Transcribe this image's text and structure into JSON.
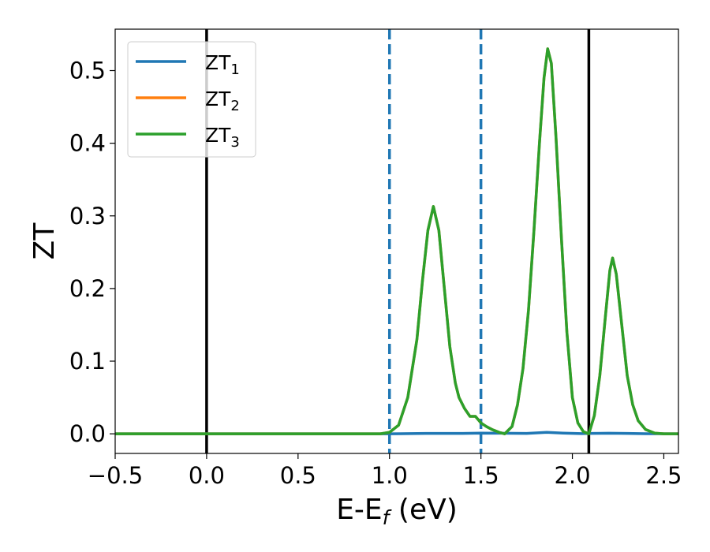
{
  "chart_data": {
    "type": "line",
    "xlabel": {
      "main": "E-E",
      "sub": "f",
      "rest": " (eV)"
    },
    "ylabel": "ZT",
    "xlim": [
      -0.5,
      2.58
    ],
    "ylim": [
      -0.027,
      0.557
    ],
    "xticks": [
      {
        "value": -0.5,
        "label": "−0.5"
      },
      {
        "value": 0.0,
        "label": "0.0"
      },
      {
        "value": 0.5,
        "label": "0.5"
      },
      {
        "value": 1.0,
        "label": "1.0"
      },
      {
        "value": 1.5,
        "label": "1.5"
      },
      {
        "value": 2.0,
        "label": "2.0"
      },
      {
        "value": 2.5,
        "label": "2.5"
      }
    ],
    "yticks": [
      {
        "value": 0.0,
        "label": "0.0"
      },
      {
        "value": 0.1,
        "label": "0.1"
      },
      {
        "value": 0.2,
        "label": "0.2"
      },
      {
        "value": 0.3,
        "label": "0.3"
      },
      {
        "value": 0.4,
        "label": "0.4"
      },
      {
        "value": 0.5,
        "label": "0.5"
      }
    ],
    "legend_position": "top-left",
    "grid": false,
    "vlines": [
      {
        "x": 0.0,
        "color": "#000000",
        "style": "solid"
      },
      {
        "x": 1.0,
        "color": "#1f77b4",
        "style": "dashed"
      },
      {
        "x": 1.5,
        "color": "#1f77b4",
        "style": "dashed"
      },
      {
        "x": 2.09,
        "color": "#000000",
        "style": "solid"
      }
    ],
    "series": [
      {
        "name": {
          "main": "ZT",
          "sub": "1"
        },
        "color": "#1f77b4",
        "x": [
          -0.5,
          0.0,
          0.5,
          1.0,
          1.2,
          1.4,
          1.5,
          1.6,
          1.75,
          1.86,
          1.95,
          2.05,
          2.1,
          2.2,
          2.3,
          2.4,
          2.58
        ],
        "y": [
          0,
          0,
          0,
          0,
          0.0005,
          0.0005,
          0.001,
          0.0008,
          0.0005,
          0.002,
          0.001,
          0.0003,
          0.0005,
          0.0008,
          0.0005,
          0.0002,
          0
        ]
      },
      {
        "name": {
          "main": "ZT",
          "sub": "2"
        },
        "color": "#ff7f0e",
        "x": [
          -0.5,
          0.0,
          0.5,
          0.95,
          1.0,
          1.05,
          1.1,
          1.15,
          1.18,
          1.21,
          1.24,
          1.27,
          1.3,
          1.33,
          1.36,
          1.38,
          1.41,
          1.44,
          1.47,
          1.5,
          1.53,
          1.56,
          1.6,
          1.63,
          1.67,
          1.7,
          1.73,
          1.76,
          1.79,
          1.82,
          1.845,
          1.865,
          1.885,
          1.91,
          1.94,
          1.97,
          2.0,
          2.03,
          2.06,
          2.09,
          2.12,
          2.15,
          2.18,
          2.205,
          2.22,
          2.24,
          2.27,
          2.3,
          2.33,
          2.36,
          2.4,
          2.45,
          2.5,
          2.58
        ],
        "y": [
          0,
          0,
          0,
          0,
          0.002,
          0.012,
          0.05,
          0.13,
          0.21,
          0.28,
          0.313,
          0.28,
          0.2,
          0.12,
          0.07,
          0.05,
          0.035,
          0.024,
          0.024,
          0.015,
          0.01,
          0.006,
          0.002,
          0.0,
          0.01,
          0.04,
          0.09,
          0.17,
          0.28,
          0.4,
          0.49,
          0.53,
          0.51,
          0.41,
          0.27,
          0.14,
          0.05,
          0.015,
          0.003,
          0.0,
          0.025,
          0.08,
          0.16,
          0.225,
          0.242,
          0.22,
          0.15,
          0.08,
          0.04,
          0.018,
          0.006,
          0.001,
          0.0,
          0
        ]
      },
      {
        "name": {
          "main": "ZT",
          "sub": "3"
        },
        "color": "#2ca02c",
        "x": [
          -0.5,
          0.0,
          0.5,
          0.95,
          1.0,
          1.05,
          1.1,
          1.15,
          1.18,
          1.21,
          1.24,
          1.27,
          1.3,
          1.33,
          1.36,
          1.38,
          1.41,
          1.44,
          1.47,
          1.5,
          1.53,
          1.56,
          1.6,
          1.63,
          1.67,
          1.7,
          1.73,
          1.76,
          1.79,
          1.82,
          1.845,
          1.865,
          1.885,
          1.91,
          1.94,
          1.97,
          2.0,
          2.03,
          2.06,
          2.09,
          2.12,
          2.15,
          2.18,
          2.205,
          2.22,
          2.24,
          2.27,
          2.3,
          2.33,
          2.36,
          2.4,
          2.45,
          2.5,
          2.58
        ],
        "y": [
          0,
          0,
          0,
          0,
          0.002,
          0.012,
          0.05,
          0.13,
          0.21,
          0.28,
          0.313,
          0.28,
          0.2,
          0.12,
          0.07,
          0.05,
          0.035,
          0.024,
          0.024,
          0.015,
          0.01,
          0.006,
          0.002,
          0.0,
          0.01,
          0.04,
          0.09,
          0.17,
          0.28,
          0.4,
          0.49,
          0.53,
          0.51,
          0.41,
          0.27,
          0.14,
          0.05,
          0.015,
          0.003,
          0.0,
          0.025,
          0.08,
          0.16,
          0.225,
          0.242,
          0.22,
          0.15,
          0.08,
          0.04,
          0.018,
          0.006,
          0.001,
          0.0,
          0
        ]
      }
    ]
  }
}
